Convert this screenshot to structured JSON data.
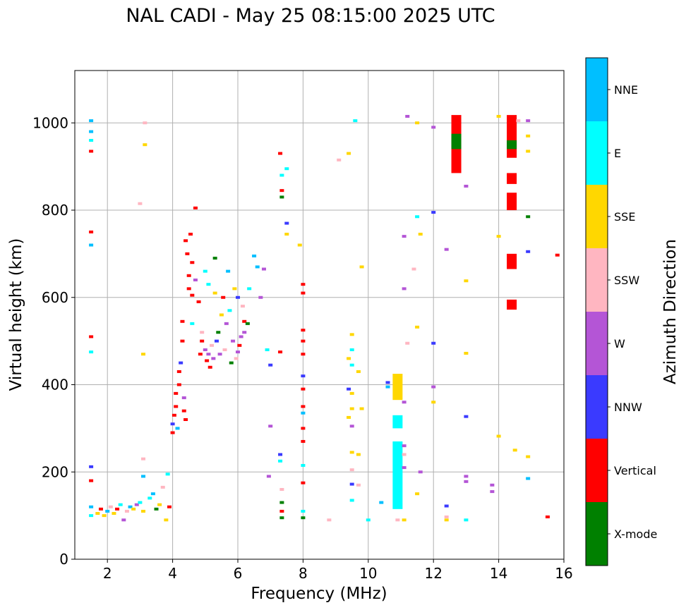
{
  "chart_data": {
    "type": "scatter",
    "title": "NAL CADI - May 25 08:15:00 2025 UTC",
    "xlabel": "Frequency (MHz)",
    "ylabel": "Virtual height (km)",
    "xlim": [
      1,
      16
    ],
    "ylim": [
      0,
      1120
    ],
    "xticks": [
      2,
      4,
      6,
      8,
      10,
      12,
      14,
      16
    ],
    "yticks": [
      0,
      200,
      400,
      600,
      800,
      1000
    ],
    "grid": true,
    "colorbar": {
      "label": "Azimuth Direction",
      "categories": [
        {
          "name": "X-mode",
          "color": "#008000"
        },
        {
          "name": "Vertical",
          "color": "#ff0000"
        },
        {
          "name": "NNW",
          "color": "#3a3aff"
        },
        {
          "name": "W",
          "color": "#b455d6"
        },
        {
          "name": "SSW",
          "color": "#ffb6c1"
        },
        {
          "name": "SSE",
          "color": "#ffd700"
        },
        {
          "name": "E",
          "color": "#00ffff"
        },
        {
          "name": "NNE",
          "color": "#00bfff"
        }
      ]
    },
    "blocks": [
      {
        "f": 12.7,
        "h": [
          885,
          1018
        ],
        "d": "Vertical"
      },
      {
        "f": 12.7,
        "h": [
          940,
          975
        ],
        "d": "X-mode"
      },
      {
        "f": 14.4,
        "h": [
          920,
          1018
        ],
        "d": "Vertical"
      },
      {
        "f": 14.4,
        "h": [
          940,
          960
        ],
        "d": "X-mode"
      },
      {
        "f": 14.4,
        "h": [
          860,
          885
        ],
        "d": "Vertical"
      },
      {
        "f": 14.4,
        "h": [
          800,
          840
        ],
        "d": "Vertical"
      },
      {
        "f": 14.4,
        "h": [
          665,
          700
        ],
        "d": "Vertical"
      },
      {
        "f": 14.4,
        "h": [
          572,
          595
        ],
        "d": "Vertical"
      },
      {
        "f": 10.9,
        "h": [
          115,
          270
        ],
        "d": "E"
      },
      {
        "f": 10.9,
        "h": [
          365,
          425
        ],
        "d": "SSE"
      },
      {
        "f": 10.9,
        "h": [
          300,
          330
        ],
        "d": "E"
      }
    ],
    "points": [
      {
        "f": 1.5,
        "h": 1005,
        "d": "NNE"
      },
      {
        "f": 1.5,
        "h": 980,
        "d": "NNE"
      },
      {
        "f": 1.5,
        "h": 960,
        "d": "E"
      },
      {
        "f": 1.5,
        "h": 935,
        "d": "Vertical"
      },
      {
        "f": 1.5,
        "h": 750,
        "d": "Vertical"
      },
      {
        "f": 1.5,
        "h": 720,
        "d": "NNE"
      },
      {
        "f": 1.5,
        "h": 510,
        "d": "Vertical"
      },
      {
        "f": 1.5,
        "h": 475,
        "d": "E"
      },
      {
        "f": 1.5,
        "h": 212,
        "d": "NNW"
      },
      {
        "f": 1.5,
        "h": 180,
        "d": "Vertical"
      },
      {
        "f": 1.5,
        "h": 120,
        "d": "NNE"
      },
      {
        "f": 1.5,
        "h": 100,
        "d": "E"
      },
      {
        "f": 1.7,
        "h": 105,
        "d": "SSE"
      },
      {
        "f": 1.8,
        "h": 115,
        "d": "Vertical"
      },
      {
        "f": 1.9,
        "h": 100,
        "d": "SSE"
      },
      {
        "f": 2.0,
        "h": 110,
        "d": "NNE"
      },
      {
        "f": 2.1,
        "h": 120,
        "d": "SSW"
      },
      {
        "f": 2.2,
        "h": 105,
        "d": "SSE"
      },
      {
        "f": 2.3,
        "h": 115,
        "d": "Vertical"
      },
      {
        "f": 2.4,
        "h": 125,
        "d": "E"
      },
      {
        "f": 2.5,
        "h": 90,
        "d": "W"
      },
      {
        "f": 2.6,
        "h": 110,
        "d": "SSW"
      },
      {
        "f": 2.7,
        "h": 120,
        "d": "NNE"
      },
      {
        "f": 2.8,
        "h": 115,
        "d": "SSE"
      },
      {
        "f": 2.9,
        "h": 125,
        "d": "W"
      },
      {
        "f": 3.0,
        "h": 130,
        "d": "E"
      },
      {
        "f": 3.1,
        "h": 110,
        "d": "SSE"
      },
      {
        "f": 3.1,
        "h": 190,
        "d": "NNE"
      },
      {
        "f": 3.1,
        "h": 230,
        "d": "SSW"
      },
      {
        "f": 3.15,
        "h": 1000,
        "d": "SSW"
      },
      {
        "f": 3.15,
        "h": 950,
        "d": "SSE"
      },
      {
        "f": 3.1,
        "h": 470,
        "d": "SSE"
      },
      {
        "f": 3.0,
        "h": 815,
        "d": "SSW"
      },
      {
        "f": 3.3,
        "h": 140,
        "d": "E"
      },
      {
        "f": 3.4,
        "h": 150,
        "d": "NNE"
      },
      {
        "f": 3.5,
        "h": 115,
        "d": "X-mode"
      },
      {
        "f": 3.6,
        "h": 125,
        "d": "SSE"
      },
      {
        "f": 3.7,
        "h": 165,
        "d": "SSW"
      },
      {
        "f": 3.8,
        "h": 90,
        "d": "SSE"
      },
      {
        "f": 3.85,
        "h": 195,
        "d": "E"
      },
      {
        "f": 3.9,
        "h": 120,
        "d": "Vertical"
      },
      {
        "f": 4.0,
        "h": 290,
        "d": "Vertical"
      },
      {
        "f": 4.0,
        "h": 310,
        "d": "NNW"
      },
      {
        "f": 4.05,
        "h": 330,
        "d": "Vertical"
      },
      {
        "f": 4.1,
        "h": 350,
        "d": "Vertical"
      },
      {
        "f": 4.1,
        "h": 380,
        "d": "Vertical"
      },
      {
        "f": 4.15,
        "h": 300,
        "d": "NNE"
      },
      {
        "f": 4.2,
        "h": 400,
        "d": "Vertical"
      },
      {
        "f": 4.2,
        "h": 430,
        "d": "Vertical"
      },
      {
        "f": 4.25,
        "h": 450,
        "d": "NNW"
      },
      {
        "f": 4.3,
        "h": 500,
        "d": "Vertical"
      },
      {
        "f": 4.3,
        "h": 545,
        "d": "Vertical"
      },
      {
        "f": 4.35,
        "h": 340,
        "d": "Vertical"
      },
      {
        "f": 4.35,
        "h": 370,
        "d": "W"
      },
      {
        "f": 4.4,
        "h": 320,
        "d": "Vertical"
      },
      {
        "f": 4.4,
        "h": 730,
        "d": "Vertical"
      },
      {
        "f": 4.45,
        "h": 700,
        "d": "Vertical"
      },
      {
        "f": 4.5,
        "h": 650,
        "d": "Vertical"
      },
      {
        "f": 4.5,
        "h": 620,
        "d": "Vertical"
      },
      {
        "f": 4.55,
        "h": 745,
        "d": "Vertical"
      },
      {
        "f": 4.6,
        "h": 680,
        "d": "Vertical"
      },
      {
        "f": 4.6,
        "h": 605,
        "d": "Vertical"
      },
      {
        "f": 4.6,
        "h": 540,
        "d": "E"
      },
      {
        "f": 4.7,
        "h": 805,
        "d": "Vertical"
      },
      {
        "f": 4.7,
        "h": 640,
        "d": "W"
      },
      {
        "f": 4.8,
        "h": 590,
        "d": "Vertical"
      },
      {
        "f": 4.85,
        "h": 470,
        "d": "Vertical"
      },
      {
        "f": 4.9,
        "h": 500,
        "d": "Vertical"
      },
      {
        "f": 4.9,
        "h": 520,
        "d": "SSW"
      },
      {
        "f": 5.0,
        "h": 660,
        "d": "E"
      },
      {
        "f": 5.0,
        "h": 480,
        "d": "W"
      },
      {
        "f": 5.05,
        "h": 455,
        "d": "Vertical"
      },
      {
        "f": 5.1,
        "h": 470,
        "d": "W"
      },
      {
        "f": 5.1,
        "h": 630,
        "d": "E"
      },
      {
        "f": 5.15,
        "h": 440,
        "d": "Vertical"
      },
      {
        "f": 5.2,
        "h": 490,
        "d": "SSW"
      },
      {
        "f": 5.25,
        "h": 460,
        "d": "W"
      },
      {
        "f": 5.3,
        "h": 690,
        "d": "X-mode"
      },
      {
        "f": 5.3,
        "h": 610,
        "d": "SSE"
      },
      {
        "f": 5.35,
        "h": 500,
        "d": "NNW"
      },
      {
        "f": 5.4,
        "h": 520,
        "d": "X-mode"
      },
      {
        "f": 5.45,
        "h": 470,
        "d": "W"
      },
      {
        "f": 5.5,
        "h": 560,
        "d": "SSE"
      },
      {
        "f": 5.55,
        "h": 600,
        "d": "Vertical"
      },
      {
        "f": 5.6,
        "h": 480,
        "d": "SSW"
      },
      {
        "f": 5.65,
        "h": 540,
        "d": "W"
      },
      {
        "f": 5.7,
        "h": 660,
        "d": "NNE"
      },
      {
        "f": 5.75,
        "h": 570,
        "d": "E"
      },
      {
        "f": 5.8,
        "h": 450,
        "d": "X-mode"
      },
      {
        "f": 5.85,
        "h": 500,
        "d": "W"
      },
      {
        "f": 5.9,
        "h": 620,
        "d": "SSE"
      },
      {
        "f": 5.95,
        "h": 460,
        "d": "SSW"
      },
      {
        "f": 6.0,
        "h": 475,
        "d": "W"
      },
      {
        "f": 6.0,
        "h": 600,
        "d": "NNW"
      },
      {
        "f": 6.05,
        "h": 490,
        "d": "Vertical"
      },
      {
        "f": 6.1,
        "h": 510,
        "d": "W"
      },
      {
        "f": 6.15,
        "h": 580,
        "d": "SSW"
      },
      {
        "f": 6.2,
        "h": 520,
        "d": "W"
      },
      {
        "f": 6.2,
        "h": 545,
        "d": "Vertical"
      },
      {
        "f": 6.3,
        "h": 540,
        "d": "X-mode"
      },
      {
        "f": 6.35,
        "h": 620,
        "d": "E"
      },
      {
        "f": 6.5,
        "h": 695,
        "d": "NNE"
      },
      {
        "f": 6.6,
        "h": 670,
        "d": "NNE"
      },
      {
        "f": 6.7,
        "h": 600,
        "d": "W"
      },
      {
        "f": 6.8,
        "h": 665,
        "d": "W"
      },
      {
        "f": 6.9,
        "h": 480,
        "d": "E"
      },
      {
        "f": 7.0,
        "h": 445,
        "d": "NNW"
      },
      {
        "f": 6.95,
        "h": 190,
        "d": "W"
      },
      {
        "f": 7.0,
        "h": 305,
        "d": "W"
      },
      {
        "f": 7.3,
        "h": 930,
        "d": "Vertical"
      },
      {
        "f": 7.35,
        "h": 880,
        "d": "E"
      },
      {
        "f": 7.35,
        "h": 845,
        "d": "Vertical"
      },
      {
        "f": 7.35,
        "h": 830,
        "d": "X-mode"
      },
      {
        "f": 7.5,
        "h": 895,
        "d": "E"
      },
      {
        "f": 7.5,
        "h": 770,
        "d": "NNW"
      },
      {
        "f": 7.5,
        "h": 745,
        "d": "SSE"
      },
      {
        "f": 7.3,
        "h": 475,
        "d": "Vertical"
      },
      {
        "f": 7.3,
        "h": 240,
        "d": "NNW"
      },
      {
        "f": 7.3,
        "h": 225,
        "d": "E"
      },
      {
        "f": 7.35,
        "h": 160,
        "d": "SSW"
      },
      {
        "f": 7.35,
        "h": 130,
        "d": "X-mode"
      },
      {
        "f": 7.35,
        "h": 110,
        "d": "Vertical"
      },
      {
        "f": 7.35,
        "h": 95,
        "d": "X-mode"
      },
      {
        "f": 7.9,
        "h": 720,
        "d": "SSE"
      },
      {
        "f": 8.0,
        "h": 630,
        "d": "Vertical"
      },
      {
        "f": 8.0,
        "h": 610,
        "d": "Vertical"
      },
      {
        "f": 8.0,
        "h": 525,
        "d": "Vertical"
      },
      {
        "f": 8.0,
        "h": 500,
        "d": "Vertical"
      },
      {
        "f": 8.0,
        "h": 470,
        "d": "Vertical"
      },
      {
        "f": 8.0,
        "h": 420,
        "d": "NNW"
      },
      {
        "f": 8.0,
        "h": 390,
        "d": "Vertical"
      },
      {
        "f": 8.0,
        "h": 350,
        "d": "Vertical"
      },
      {
        "f": 8.0,
        "h": 335,
        "d": "NNE"
      },
      {
        "f": 8.0,
        "h": 300,
        "d": "Vertical"
      },
      {
        "f": 8.0,
        "h": 270,
        "d": "Vertical"
      },
      {
        "f": 8.0,
        "h": 215,
        "d": "E"
      },
      {
        "f": 8.0,
        "h": 175,
        "d": "Vertical"
      },
      {
        "f": 8.0,
        "h": 110,
        "d": "E"
      },
      {
        "f": 8.0,
        "h": 95,
        "d": "X-mode"
      },
      {
        "f": 8.8,
        "h": 90,
        "d": "SSW"
      },
      {
        "f": 9.1,
        "h": 915,
        "d": "SSW"
      },
      {
        "f": 9.4,
        "h": 930,
        "d": "SSE"
      },
      {
        "f": 9.4,
        "h": 460,
        "d": "SSE"
      },
      {
        "f": 9.4,
        "h": 390,
        "d": "NNW"
      },
      {
        "f": 9.4,
        "h": 325,
        "d": "SSE"
      },
      {
        "f": 9.5,
        "h": 515,
        "d": "SSE"
      },
      {
        "f": 9.5,
        "h": 480,
        "d": "E"
      },
      {
        "f": 9.5,
        "h": 445,
        "d": "E"
      },
      {
        "f": 9.5,
        "h": 380,
        "d": "SSE"
      },
      {
        "f": 9.5,
        "h": 345,
        "d": "SSE"
      },
      {
        "f": 9.5,
        "h": 305,
        "d": "W"
      },
      {
        "f": 9.5,
        "h": 245,
        "d": "SSE"
      },
      {
        "f": 9.5,
        "h": 205,
        "d": "SSW"
      },
      {
        "f": 9.5,
        "h": 172,
        "d": "NNW"
      },
      {
        "f": 9.5,
        "h": 135,
        "d": "E"
      },
      {
        "f": 9.6,
        "h": 1005,
        "d": "E"
      },
      {
        "f": 9.7,
        "h": 430,
        "d": "SSE"
      },
      {
        "f": 9.7,
        "h": 240,
        "d": "SSE"
      },
      {
        "f": 9.7,
        "h": 170,
        "d": "SSW"
      },
      {
        "f": 9.8,
        "h": 670,
        "d": "SSE"
      },
      {
        "f": 9.8,
        "h": 345,
        "d": "SSE"
      },
      {
        "f": 10.0,
        "h": 90,
        "d": "E"
      },
      {
        "f": 10.4,
        "h": 130,
        "d": "NNE"
      },
      {
        "f": 10.6,
        "h": 405,
        "d": "NNW"
      },
      {
        "f": 10.6,
        "h": 395,
        "d": "NNE"
      },
      {
        "f": 10.9,
        "h": 90,
        "d": "SSW"
      },
      {
        "f": 11.1,
        "h": 740,
        "d": "W"
      },
      {
        "f": 11.1,
        "h": 620,
        "d": "W"
      },
      {
        "f": 11.1,
        "h": 360,
        "d": "W"
      },
      {
        "f": 11.1,
        "h": 260,
        "d": "W"
      },
      {
        "f": 11.1,
        "h": 240,
        "d": "SSW"
      },
      {
        "f": 11.1,
        "h": 210,
        "d": "W"
      },
      {
        "f": 11.1,
        "h": 90,
        "d": "SSE"
      },
      {
        "f": 11.2,
        "h": 1015,
        "d": "W"
      },
      {
        "f": 11.2,
        "h": 495,
        "d": "SSW"
      },
      {
        "f": 11.4,
        "h": 665,
        "d": "SSW"
      },
      {
        "f": 11.5,
        "h": 1000,
        "d": "SSE"
      },
      {
        "f": 11.5,
        "h": 785,
        "d": "E"
      },
      {
        "f": 11.5,
        "h": 532,
        "d": "SSE"
      },
      {
        "f": 11.5,
        "h": 150,
        "d": "SSE"
      },
      {
        "f": 11.6,
        "h": 745,
        "d": "SSE"
      },
      {
        "f": 11.6,
        "h": 200,
        "d": "W"
      },
      {
        "f": 12.0,
        "h": 990,
        "d": "W"
      },
      {
        "f": 12.0,
        "h": 795,
        "d": "NNW"
      },
      {
        "f": 12.0,
        "h": 495,
        "d": "NNW"
      },
      {
        "f": 12.0,
        "h": 395,
        "d": "W"
      },
      {
        "f": 12.0,
        "h": 360,
        "d": "SSE"
      },
      {
        "f": 12.4,
        "h": 710,
        "d": "W"
      },
      {
        "f": 12.4,
        "h": 122,
        "d": "NNW"
      },
      {
        "f": 12.4,
        "h": 97,
        "d": "SSW"
      },
      {
        "f": 12.4,
        "h": 90,
        "d": "SSE"
      },
      {
        "f": 13.0,
        "h": 855,
        "d": "W"
      },
      {
        "f": 13.0,
        "h": 638,
        "d": "SSE"
      },
      {
        "f": 13.0,
        "h": 472,
        "d": "SSE"
      },
      {
        "f": 13.0,
        "h": 327,
        "d": "NNW"
      },
      {
        "f": 13.0,
        "h": 190,
        "d": "W"
      },
      {
        "f": 13.0,
        "h": 178,
        "d": "W"
      },
      {
        "f": 13.0,
        "h": 90,
        "d": "E"
      },
      {
        "f": 13.8,
        "h": 170,
        "d": "W"
      },
      {
        "f": 13.8,
        "h": 155,
        "d": "W"
      },
      {
        "f": 14.0,
        "h": 1015,
        "d": "SSE"
      },
      {
        "f": 14.0,
        "h": 740,
        "d": "SSE"
      },
      {
        "f": 14.0,
        "h": 282,
        "d": "SSE"
      },
      {
        "f": 14.5,
        "h": 250,
        "d": "SSE"
      },
      {
        "f": 14.6,
        "h": 1005,
        "d": "SSW"
      },
      {
        "f": 14.9,
        "h": 1005,
        "d": "W"
      },
      {
        "f": 14.9,
        "h": 970,
        "d": "SSE"
      },
      {
        "f": 14.9,
        "h": 935,
        "d": "SSE"
      },
      {
        "f": 14.9,
        "h": 785,
        "d": "X-mode"
      },
      {
        "f": 14.9,
        "h": 705,
        "d": "NNW"
      },
      {
        "f": 14.9,
        "h": 235,
        "d": "SSE"
      },
      {
        "f": 14.9,
        "h": 185,
        "d": "NNE"
      },
      {
        "f": 15.5,
        "h": 97,
        "d": "Vertical"
      },
      {
        "f": 15.8,
        "h": 697,
        "d": "Vertical"
      }
    ]
  }
}
